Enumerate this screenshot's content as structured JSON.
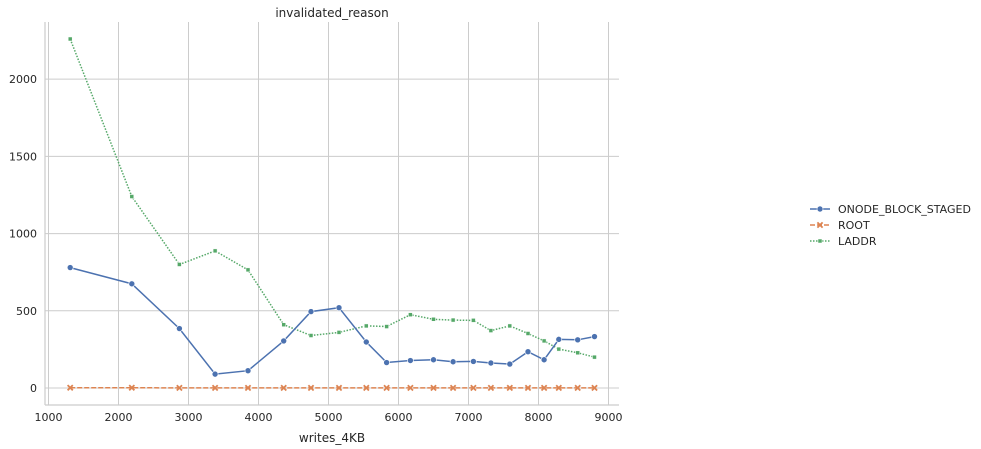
{
  "chart_data": {
    "type": "line",
    "title": "invalidated_reason",
    "xlabel": "writes_4KB",
    "ylabel": "",
    "xlim": [
      950,
      9150
    ],
    "ylim": [
      -110,
      2370
    ],
    "xticks": [
      1000,
      2000,
      3000,
      4000,
      5000,
      6000,
      7000,
      8000,
      9000
    ],
    "yticks": [
      0,
      500,
      1000,
      1500,
      2000
    ],
    "grid": true,
    "legend_position": "right",
    "x": [
      1310,
      2190,
      2870,
      3380,
      3850,
      4360,
      4750,
      5150,
      5540,
      5830,
      6170,
      6500,
      6780,
      7070,
      7320,
      7590,
      7850,
      8080,
      8290,
      8560,
      8800
    ],
    "series": [
      {
        "name": "ONODE_BLOCK_STAGED",
        "color": "#4c72b0",
        "marker": "circle",
        "line_style": "solid",
        "values": [
          780,
          675,
          385,
          90,
          112,
          305,
          495,
          520,
          298,
          165,
          178,
          183,
          170,
          172,
          162,
          155,
          235,
          183,
          315,
          312,
          333
        ]
      },
      {
        "name": "ROOT",
        "color": "#dd8452",
        "marker": "x",
        "line_style": "dashed",
        "values": [
          2,
          2,
          1,
          1,
          1,
          1,
          1,
          1,
          1,
          1,
          1,
          1,
          1,
          1,
          1,
          1,
          1,
          1,
          1,
          1,
          1
        ]
      },
      {
        "name": "LADDR",
        "color": "#55a868",
        "marker": "square",
        "line_style": "dotted",
        "values": [
          2260,
          1240,
          800,
          888,
          765,
          410,
          340,
          360,
          402,
          398,
          475,
          445,
          440,
          438,
          372,
          402,
          353,
          305,
          252,
          228,
          200
        ]
      }
    ]
  }
}
